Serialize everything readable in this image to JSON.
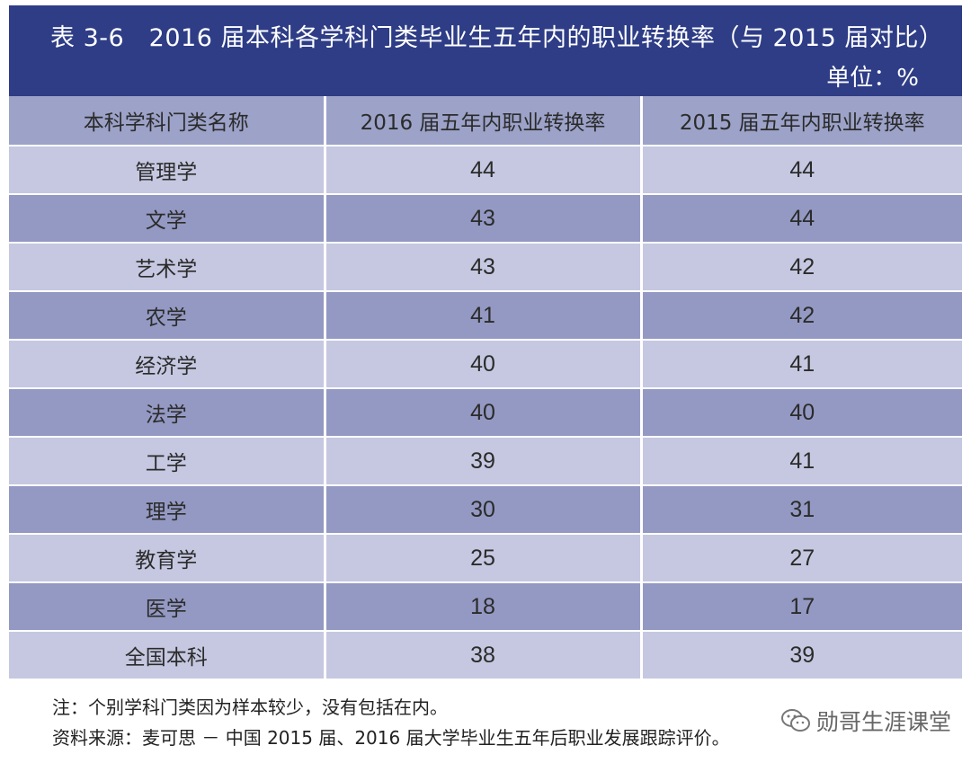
{
  "title": "表 3-6　2016 届本科各学科门类毕业生五年内的职业转换率（与 2015 届对比）",
  "unit": "单位：%",
  "table": {
    "headers": [
      "本科学科门类名称",
      "2016 届五年内职业转换率",
      "2015 届五年内职业转换率"
    ],
    "rows": [
      {
        "name": "管理学",
        "v2016": "44",
        "v2015": "44"
      },
      {
        "name": "文学",
        "v2016": "43",
        "v2015": "44"
      },
      {
        "name": "艺术学",
        "v2016": "43",
        "v2015": "42"
      },
      {
        "name": "农学",
        "v2016": "41",
        "v2015": "42"
      },
      {
        "name": "经济学",
        "v2016": "40",
        "v2015": "41"
      },
      {
        "name": "法学",
        "v2016": "40",
        "v2015": "40"
      },
      {
        "name": "工学",
        "v2016": "39",
        "v2015": "41"
      },
      {
        "name": "理学",
        "v2016": "30",
        "v2015": "31"
      },
      {
        "name": "教育学",
        "v2016": "25",
        "v2015": "27"
      },
      {
        "name": "医学",
        "v2016": "18",
        "v2015": "17"
      },
      {
        "name": "全国本科",
        "v2016": "38",
        "v2015": "39"
      }
    ]
  },
  "notes": {
    "note": "注：个别学科门类因为样本较少，没有包括在内。",
    "source": "资料来源：麦可思 － 中国 2015 届、2016 届大学毕业生五年后职业发展跟踪评价。"
  },
  "watermark": {
    "text": "勋哥生涯课堂",
    "icon": "wechat-icon"
  },
  "colors": {
    "title_bg": "#2e3d86",
    "header_bg": "#9ca2c8",
    "row_light": "#c5c8e0",
    "row_dark": "#9499c3"
  }
}
